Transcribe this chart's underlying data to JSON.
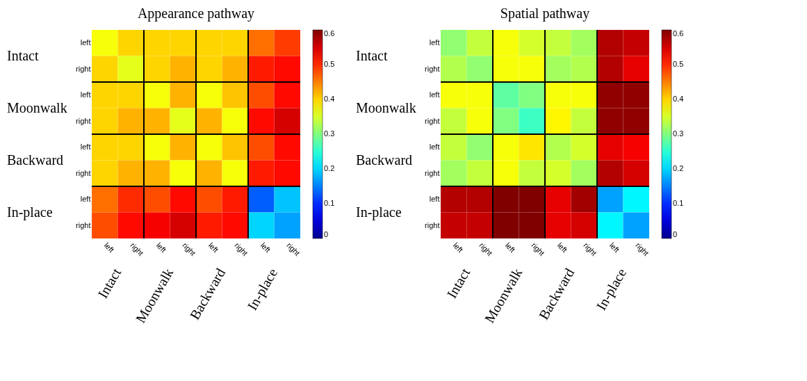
{
  "chart_data": [
    {
      "type": "heatmap",
      "title": "Appearance pathway",
      "categories": [
        "left",
        "right",
        "left",
        "right",
        "left",
        "right",
        "left",
        "right"
      ],
      "y_categories": [
        "left",
        "right",
        "left",
        "right",
        "left",
        "right",
        "left",
        "right"
      ],
      "cells": [
        [
          0.37,
          0.4,
          0.4,
          0.4,
          0.4,
          0.4,
          0.46,
          0.49
        ],
        [
          0.4,
          0.36,
          0.4,
          0.42,
          0.4,
          0.42,
          0.51,
          0.52
        ],
        [
          0.4,
          0.4,
          0.37,
          0.42,
          0.37,
          0.41,
          0.48,
          0.52
        ],
        [
          0.4,
          0.42,
          0.42,
          0.36,
          0.42,
          0.37,
          0.52,
          0.55
        ],
        [
          0.4,
          0.4,
          0.37,
          0.42,
          0.37,
          0.41,
          0.48,
          0.52
        ],
        [
          0.4,
          0.42,
          0.42,
          0.37,
          0.42,
          0.37,
          0.51,
          0.52
        ],
        [
          0.46,
          0.5,
          0.48,
          0.52,
          0.48,
          0.51,
          0.13,
          0.19
        ],
        [
          0.48,
          0.52,
          0.53,
          0.55,
          0.51,
          0.52,
          0.2,
          0.17
        ]
      ],
      "clim": [
        0,
        0.6
      ],
      "cticks": [
        0,
        0.1,
        0.2,
        0.3,
        0.4,
        0.5,
        0.6
      ],
      "annotations": [
        "Intact",
        "Moonwalk",
        "Backward",
        "In-place"
      ]
    },
    {
      "type": "heatmap",
      "title": "Spatial pathway",
      "categories": [
        "left",
        "right",
        "left",
        "right",
        "left",
        "right",
        "left",
        "right"
      ],
      "y_categories": [
        "left",
        "right",
        "left",
        "right",
        "left",
        "right",
        "left",
        "right"
      ],
      "cells": [
        [
          0.31,
          0.34,
          0.37,
          0.35,
          0.34,
          0.32,
          0.57,
          0.56
        ],
        [
          0.33,
          0.31,
          0.37,
          0.37,
          0.32,
          0.33,
          0.57,
          0.54
        ],
        [
          0.37,
          0.37,
          0.28,
          0.3,
          0.37,
          0.37,
          0.59,
          0.59
        ],
        [
          0.34,
          0.37,
          0.3,
          0.26,
          0.38,
          0.34,
          0.59,
          0.59
        ],
        [
          0.34,
          0.31,
          0.37,
          0.39,
          0.33,
          0.35,
          0.54,
          0.53
        ],
        [
          0.32,
          0.34,
          0.37,
          0.34,
          0.35,
          0.32,
          0.57,
          0.55
        ],
        [
          0.57,
          0.57,
          0.6,
          0.6,
          0.54,
          0.58,
          0.17,
          0.22
        ],
        [
          0.56,
          0.56,
          0.6,
          0.6,
          0.54,
          0.55,
          0.22,
          0.17
        ]
      ],
      "clim": [
        0,
        0.6
      ],
      "cticks": [
        0,
        0.1,
        0.2,
        0.3,
        0.4,
        0.5,
        0.6
      ],
      "annotations": [
        "Intact",
        "Moonwalk",
        "Backward",
        "In-place"
      ]
    }
  ]
}
